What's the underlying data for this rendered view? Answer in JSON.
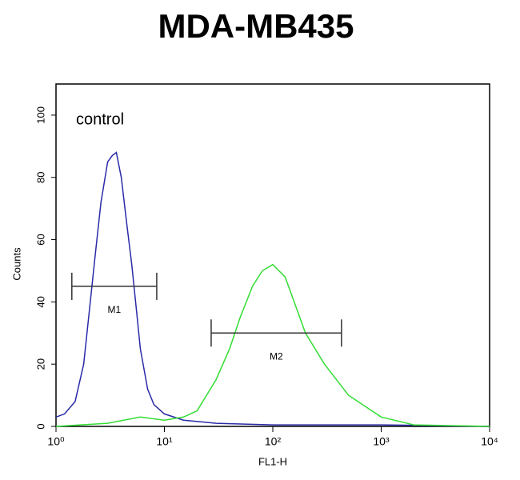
{
  "chart_data": {
    "type": "line",
    "title": "MDA-MB435",
    "xlabel": "FL1-H",
    "ylabel": "Counts",
    "annotation": "control",
    "xscale": "log",
    "xlim": [
      1,
      10000
    ],
    "xticks": [
      {
        "value": 1,
        "label": "10⁰"
      },
      {
        "value": 10,
        "label": "10¹"
      },
      {
        "value": 100,
        "label": "10²"
      },
      {
        "value": 1000,
        "label": "10³"
      },
      {
        "value": 10000,
        "label": "10⁴"
      }
    ],
    "ylim": [
      0,
      110
    ],
    "yticks": [
      0,
      20,
      40,
      60,
      80,
      100
    ],
    "series": [
      {
        "color": "#2a2aa8",
        "x": [
          1,
          1.2,
          1.5,
          1.8,
          2,
          2.3,
          2.6,
          3,
          3.3,
          3.6,
          4,
          4.5,
          5,
          5.5,
          6,
          7,
          8,
          10,
          15,
          30,
          100,
          1000,
          10000
        ],
        "values": [
          3,
          4,
          8,
          20,
          35,
          55,
          72,
          85,
          87,
          88,
          80,
          65,
          52,
          38,
          25,
          12,
          7,
          4,
          2,
          1,
          0.5,
          0.5,
          0
        ]
      },
      {
        "color": "#33dd33",
        "x": [
          1,
          3,
          6,
          10,
          15,
          20,
          30,
          40,
          50,
          65,
          80,
          100,
          130,
          150,
          200,
          300,
          500,
          1000,
          2000,
          10000
        ],
        "values": [
          0,
          1,
          3,
          2,
          3,
          5,
          15,
          25,
          35,
          45,
          50,
          52,
          48,
          42,
          30,
          20,
          10,
          3,
          0.5,
          0
        ]
      }
    ],
    "markers": [
      {
        "label": "M1",
        "x": [
          1.4,
          8.5
        ],
        "y": 45
      },
      {
        "label": "M2",
        "x": [
          27,
          430
        ],
        "y": 30
      }
    ]
  }
}
